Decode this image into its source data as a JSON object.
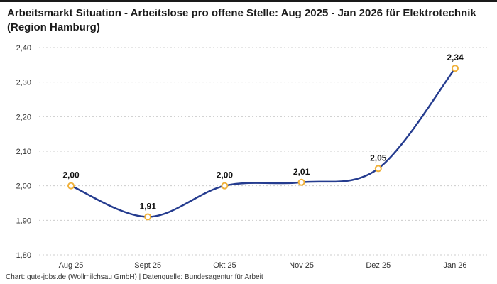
{
  "page": {
    "title": "Arbeitsmarkt Situation - Arbeitslose pro offene Stelle: Aug 2025 - Jan 2026 für Elektrotechnik (Region Hamburg)",
    "footer": "Chart: gute-jobs.de (Wollmilchsau GmbH) | Datenquelle: Bundesagentur für Arbeit"
  },
  "chart_data": {
    "type": "line",
    "title": "Arbeitsmarkt Situation - Arbeitslose pro offene Stelle: Aug 2025 - Jan 2026 für Elektrotechnik (Region Hamburg)",
    "categories": [
      "Aug 25",
      "Sept 25",
      "Okt 25",
      "Nov 25",
      "Dez 25",
      "Jan 26"
    ],
    "values": [
      2.0,
      1.91,
      2.0,
      2.01,
      2.05,
      2.34
    ],
    "value_labels": [
      "2,00",
      "1,91",
      "2,00",
      "2,01",
      "2,05",
      "2,34"
    ],
    "ylim": [
      1.8,
      2.4
    ],
    "y_ticks": [
      1.8,
      1.9,
      2.0,
      2.1,
      2.2,
      2.3,
      2.4
    ],
    "y_tick_labels": [
      "1,80",
      "1,90",
      "2,00",
      "2,10",
      "2,20",
      "2,30",
      "2,40"
    ],
    "grid": "dashed-horizontal",
    "legend": "none",
    "line_color": "#253c8f",
    "marker_stroke_color": "#f0b13a",
    "marker_fill_color": "#ffffff",
    "label_color": "#111111",
    "axis_label_color": "#333333",
    "grid_color": "#cccccc"
  }
}
